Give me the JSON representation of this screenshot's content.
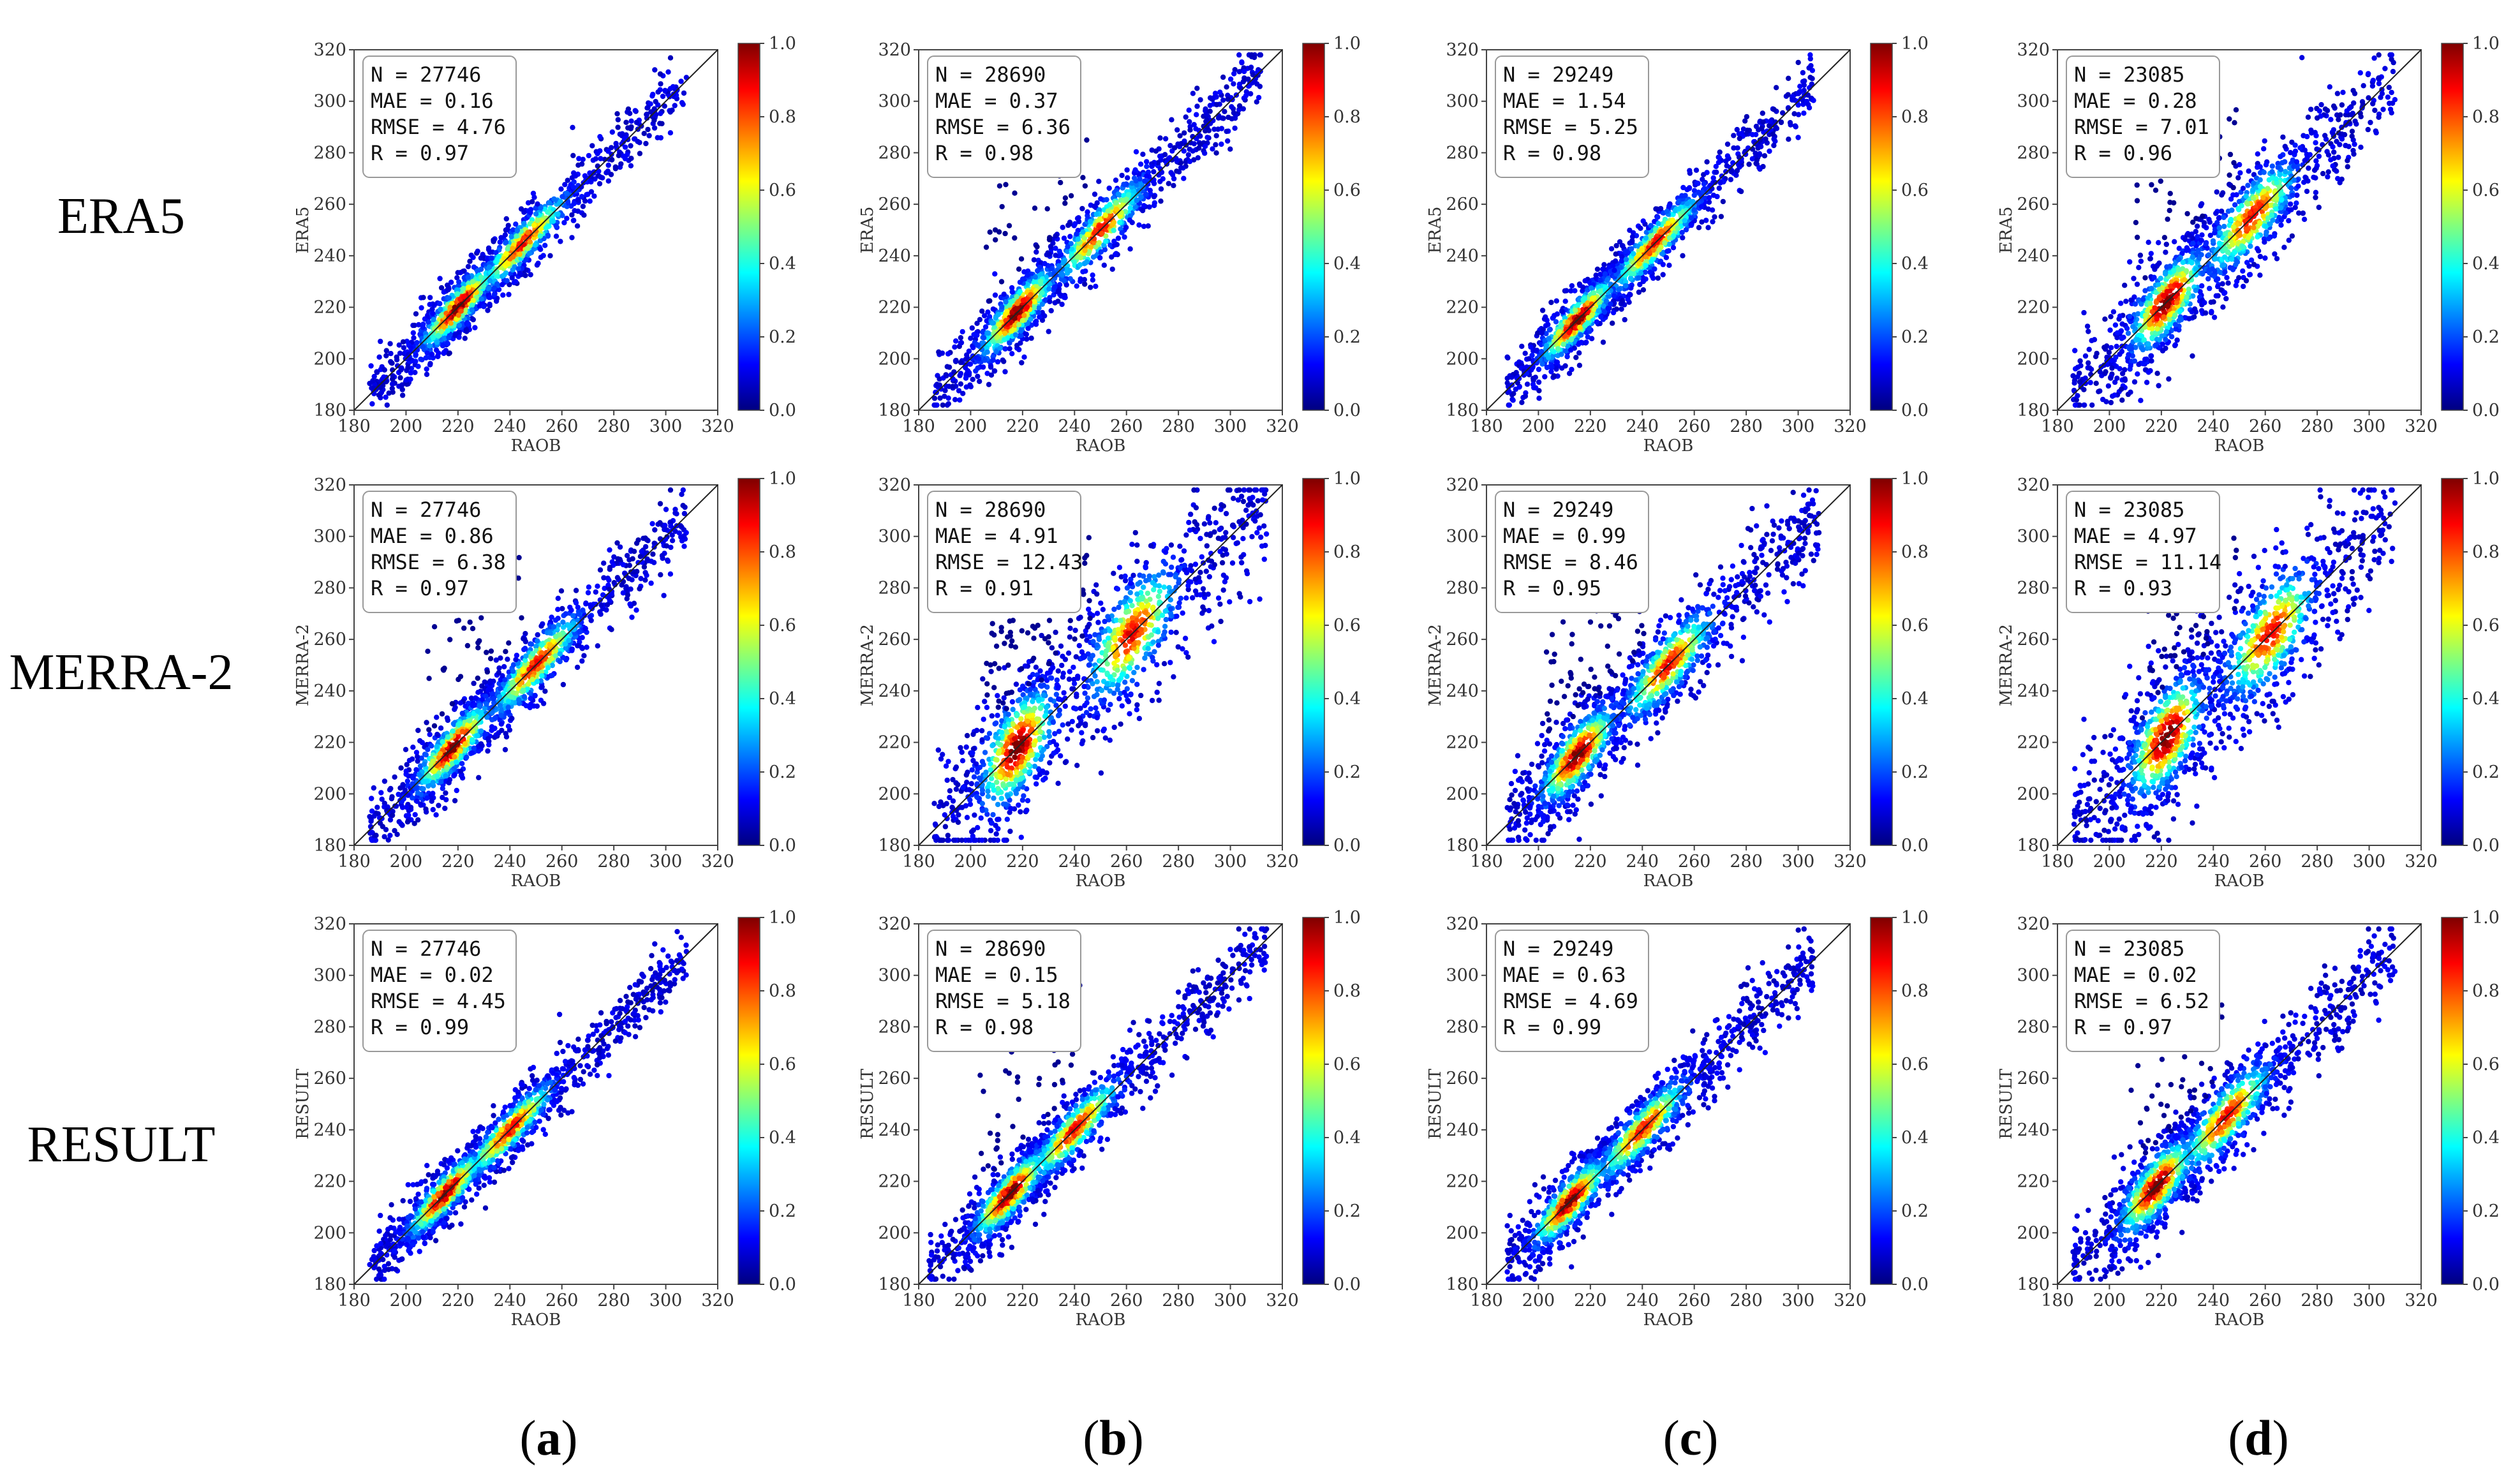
{
  "figure": {
    "row_labels": [
      "ERA5",
      "MERRA-2",
      "RESULT"
    ],
    "column_labels": [
      {
        "open": "(",
        "letter": "a",
        "close": ")"
      },
      {
        "open": "(",
        "letter": "b",
        "close": ")"
      },
      {
        "open": "(",
        "letter": "c",
        "close": ")"
      },
      {
        "open": "(",
        "letter": "d",
        "close": ")"
      }
    ],
    "colormap": [
      "#00007f",
      "#0000ff",
      "#007fff",
      "#00ffff",
      "#7fff7f",
      "#ffff00",
      "#ff7f00",
      "#ff0000",
      "#7f0000"
    ]
  },
  "chart_data": [
    {
      "type": "scatter",
      "row": 0,
      "col": 0,
      "xlabel": "RAOB",
      "ylabel": "ERA5",
      "xlim": [
        180,
        320
      ],
      "ylim": [
        180,
        320
      ],
      "xticks": [
        "180",
        "200",
        "220",
        "240",
        "260",
        "280",
        "300",
        "320"
      ],
      "yticks": [
        "180",
        "200",
        "220",
        "240",
        "260",
        "280",
        "300",
        "320"
      ],
      "colorbar": {
        "range": [
          0.0,
          1.0
        ],
        "ticks": [
          "0.0",
          "0.2",
          "0.4",
          "0.6",
          "0.8",
          "1.0"
        ]
      },
      "stats": [
        "N = 27746",
        "MAE = 0.16",
        "RMSE = 4.76",
        "R = 0.97"
      ],
      "x_range": [
        186,
        308
      ],
      "spread": 6,
      "hotspots": [
        220,
        245
      ],
      "outliers": 0
    },
    {
      "type": "scatter",
      "row": 0,
      "col": 1,
      "xlabel": "RAOB",
      "ylabel": "ERA5",
      "xlim": [
        180,
        320
      ],
      "ylim": [
        180,
        320
      ],
      "xticks": [
        "180",
        "200",
        "220",
        "240",
        "260",
        "280",
        "300",
        "320"
      ],
      "yticks": [
        "180",
        "200",
        "220",
        "240",
        "260",
        "280",
        "300",
        "320"
      ],
      "colorbar": {
        "range": [
          0.0,
          1.0
        ],
        "ticks": [
          "0.0",
          "0.2",
          "0.4",
          "0.6",
          "0.8",
          "1.0"
        ]
      },
      "stats": [
        "N = 28690",
        "MAE = 0.37",
        "RMSE = 6.36",
        "R = 0.98"
      ],
      "x_range": [
        186,
        312
      ],
      "spread": 7,
      "hotspots": [
        218,
        250
      ],
      "outliers": 1
    },
    {
      "type": "scatter",
      "row": 0,
      "col": 2,
      "xlabel": "RAOB",
      "ylabel": "ERA5",
      "xlim": [
        180,
        320
      ],
      "ylim": [
        180,
        320
      ],
      "xticks": [
        "180",
        "200",
        "220",
        "240",
        "260",
        "280",
        "300",
        "320"
      ],
      "yticks": [
        "180",
        "200",
        "220",
        "240",
        "260",
        "280",
        "300",
        "320"
      ],
      "colorbar": {
        "range": [
          0.0,
          1.0
        ],
        "ticks": [
          "0.0",
          "0.2",
          "0.4",
          "0.6",
          "0.8",
          "1.0"
        ]
      },
      "stats": [
        "N = 29249",
        "MAE = 1.54",
        "RMSE = 5.25",
        "R = 0.98"
      ],
      "x_range": [
        188,
        306
      ],
      "spread": 6,
      "hotspots": [
        215,
        245
      ],
      "outliers": 0
    },
    {
      "type": "scatter",
      "row": 0,
      "col": 3,
      "xlabel": "RAOB",
      "ylabel": "ERA5",
      "xlim": [
        180,
        320
      ],
      "ylim": [
        180,
        320
      ],
      "xticks": [
        "180",
        "200",
        "220",
        "240",
        "260",
        "280",
        "300",
        "320"
      ],
      "yticks": [
        "180",
        "200",
        "220",
        "240",
        "260",
        "280",
        "300",
        "320"
      ],
      "colorbar": {
        "range": [
          0.0,
          1.0
        ],
        "ticks": [
          "0.0",
          "0.2",
          "0.4",
          "0.6",
          "0.8",
          "1.0"
        ]
      },
      "stats": [
        "N = 23085",
        "MAE = 0.28",
        "RMSE = 7.01",
        "R = 0.96"
      ],
      "x_range": [
        186,
        310
      ],
      "spread": 10,
      "hotspots": [
        222,
        255
      ],
      "outliers": 1
    },
    {
      "type": "scatter",
      "row": 1,
      "col": 0,
      "xlabel": "RAOB",
      "ylabel": "MERRA-2",
      "xlim": [
        180,
        320
      ],
      "ylim": [
        180,
        320
      ],
      "xticks": [
        "180",
        "200",
        "220",
        "240",
        "260",
        "280",
        "300",
        "320"
      ],
      "yticks": [
        "180",
        "200",
        "220",
        "240",
        "260",
        "280",
        "300",
        "320"
      ],
      "colorbar": {
        "range": [
          0.0,
          1.0
        ],
        "ticks": [
          "0.0",
          "0.2",
          "0.4",
          "0.6",
          "0.8",
          "1.0"
        ]
      },
      "stats": [
        "N = 27746",
        "MAE = 0.86",
        "RMSE = 6.38",
        "R = 0.97"
      ],
      "x_range": [
        186,
        308
      ],
      "spread": 7,
      "hotspots": [
        218,
        250
      ],
      "outliers": 1
    },
    {
      "type": "scatter",
      "row": 1,
      "col": 1,
      "xlabel": "RAOB",
      "ylabel": "MERRA-2",
      "xlim": [
        180,
        320
      ],
      "ylim": [
        180,
        320
      ],
      "xticks": [
        "180",
        "200",
        "220",
        "240",
        "260",
        "280",
        "300",
        "320"
      ],
      "yticks": [
        "180",
        "200",
        "220",
        "240",
        "260",
        "280",
        "300",
        "320"
      ],
      "colorbar": {
        "range": [
          0.0,
          1.0
        ],
        "ticks": [
          "0.0",
          "0.2",
          "0.4",
          "0.6",
          "0.8",
          "1.0"
        ]
      },
      "stats": [
        "N = 28690",
        "MAE = 4.91",
        "RMSE = 12.43",
        "R = 0.91"
      ],
      "x_range": [
        186,
        314
      ],
      "spread": 14,
      "hotspots": [
        218,
        262
      ],
      "outliers": 2
    },
    {
      "type": "scatter",
      "row": 1,
      "col": 2,
      "xlabel": "RAOB",
      "ylabel": "MERRA-2",
      "xlim": [
        180,
        320
      ],
      "ylim": [
        180,
        320
      ],
      "xticks": [
        "180",
        "200",
        "220",
        "240",
        "260",
        "280",
        "300",
        "320"
      ],
      "yticks": [
        "180",
        "200",
        "220",
        "240",
        "260",
        "280",
        "300",
        "320"
      ],
      "colorbar": {
        "range": [
          0.0,
          1.0
        ],
        "ticks": [
          "0.0",
          "0.2",
          "0.4",
          "0.6",
          "0.8",
          "1.0"
        ]
      },
      "stats": [
        "N = 29249",
        "MAE = 0.99",
        "RMSE = 8.46",
        "R = 0.95"
      ],
      "x_range": [
        188,
        308
      ],
      "spread": 9,
      "hotspots": [
        215,
        250
      ],
      "outliers": 2
    },
    {
      "type": "scatter",
      "row": 1,
      "col": 3,
      "xlabel": "RAOB",
      "ylabel": "MERRA-2",
      "xlim": [
        180,
        320
      ],
      "ylim": [
        180,
        320
      ],
      "xticks": [
        "180",
        "200",
        "220",
        "240",
        "260",
        "280",
        "300",
        "320"
      ],
      "yticks": [
        "180",
        "200",
        "220",
        "240",
        "260",
        "280",
        "300",
        "320"
      ],
      "colorbar": {
        "range": [
          0.0,
          1.0
        ],
        "ticks": [
          "0.0",
          "0.2",
          "0.4",
          "0.6",
          "0.8",
          "1.0"
        ]
      },
      "stats": [
        "N = 23085",
        "MAE = 4.97",
        "RMSE = 11.14",
        "R = 0.93"
      ],
      "x_range": [
        186,
        310
      ],
      "spread": 14,
      "hotspots": [
        222,
        262
      ],
      "outliers": 1
    },
    {
      "type": "scatter",
      "row": 2,
      "col": 0,
      "xlabel": "RAOB",
      "ylabel": "RESULT",
      "xlim": [
        180,
        320
      ],
      "ylim": [
        180,
        320
      ],
      "xticks": [
        "180",
        "200",
        "220",
        "240",
        "260",
        "280",
        "300",
        "320"
      ],
      "yticks": [
        "180",
        "200",
        "220",
        "240",
        "260",
        "280",
        "300",
        "320"
      ],
      "colorbar": {
        "range": [
          0.0,
          1.0
        ],
        "ticks": [
          "0.0",
          "0.2",
          "0.4",
          "0.6",
          "0.8",
          "1.0"
        ]
      },
      "stats": [
        "N = 27746",
        "MAE = 0.02",
        "RMSE = 4.45",
        "R = 0.99"
      ],
      "x_range": [
        186,
        308
      ],
      "spread": 6,
      "hotspots": [
        215,
        240
      ],
      "outliers": 0
    },
    {
      "type": "scatter",
      "row": 2,
      "col": 1,
      "xlabel": "RAOB",
      "ylabel": "RESULT",
      "xlim": [
        180,
        320
      ],
      "ylim": [
        180,
        320
      ],
      "xticks": [
        "180",
        "200",
        "220",
        "240",
        "260",
        "280",
        "300",
        "320"
      ],
      "yticks": [
        "180",
        "200",
        "220",
        "240",
        "260",
        "280",
        "300",
        "320"
      ],
      "colorbar": {
        "range": [
          0.0,
          1.0
        ],
        "ticks": [
          "0.0",
          "0.2",
          "0.4",
          "0.6",
          "0.8",
          "1.0"
        ]
      },
      "stats": [
        "N = 28690",
        "MAE = 0.15",
        "RMSE = 5.18",
        "R = 0.98"
      ],
      "x_range": [
        184,
        314
      ],
      "spread": 7,
      "hotspots": [
        215,
        240
      ],
      "outliers": 1
    },
    {
      "type": "scatter",
      "row": 2,
      "col": 2,
      "xlabel": "RAOB",
      "ylabel": "RESULT",
      "xlim": [
        180,
        320
      ],
      "ylim": [
        180,
        320
      ],
      "xticks": [
        "180",
        "200",
        "220",
        "240",
        "260",
        "280",
        "300",
        "320"
      ],
      "yticks": [
        "180",
        "200",
        "220",
        "240",
        "260",
        "280",
        "300",
        "320"
      ],
      "colorbar": {
        "range": [
          0.0,
          1.0
        ],
        "ticks": [
          "0.0",
          "0.2",
          "0.4",
          "0.6",
          "0.8",
          "1.0"
        ]
      },
      "stats": [
        "N = 29249",
        "MAE = 0.63",
        "RMSE = 4.69",
        "R = 0.99"
      ],
      "x_range": [
        188,
        306
      ],
      "spread": 7,
      "hotspots": [
        212,
        240
      ],
      "outliers": 0
    },
    {
      "type": "scatter",
      "row": 2,
      "col": 3,
      "xlabel": "RAOB",
      "ylabel": "RESULT",
      "xlim": [
        180,
        320
      ],
      "ylim": [
        180,
        320
      ],
      "xticks": [
        "180",
        "200",
        "220",
        "240",
        "260",
        "280",
        "300",
        "320"
      ],
      "yticks": [
        "180",
        "200",
        "220",
        "240",
        "260",
        "280",
        "300",
        "320"
      ],
      "colorbar": {
        "range": [
          0.0,
          1.0
        ],
        "ticks": [
          "0.0",
          "0.2",
          "0.4",
          "0.6",
          "0.8",
          "1.0"
        ]
      },
      "stats": [
        "N = 23085",
        "MAE = 0.02",
        "RMSE = 6.52",
        "R = 0.97"
      ],
      "x_range": [
        186,
        310
      ],
      "spread": 9,
      "hotspots": [
        218,
        245
      ],
      "outliers": 1
    }
  ]
}
